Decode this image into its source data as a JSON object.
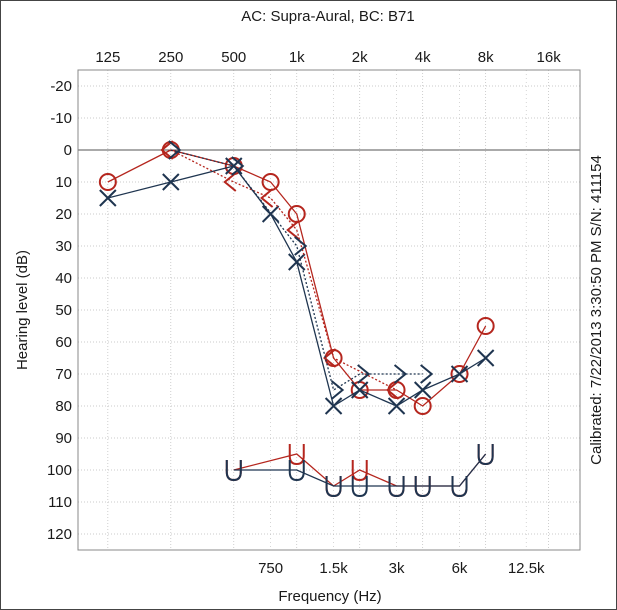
{
  "chart_data": {
    "type": "line",
    "title": "AC: Supra-Aural, BC: B71",
    "xlabel": "Frequency (Hz)",
    "ylabel": "Hearing level (dB)",
    "side_text": "Calibrated: 7/22/2013 3:30:50 PM S/N: 411154",
    "x_scale": "log",
    "xlim": [
      90,
      22600
    ],
    "ylim": [
      -25,
      125
    ],
    "y_inverted": true,
    "grid": true,
    "top_ticks": [
      {
        "hz": 125,
        "label": "125"
      },
      {
        "hz": 250,
        "label": "250"
      },
      {
        "hz": 500,
        "label": "500"
      },
      {
        "hz": 1000,
        "label": "1k"
      },
      {
        "hz": 2000,
        "label": "2k"
      },
      {
        "hz": 4000,
        "label": "4k"
      },
      {
        "hz": 8000,
        "label": "8k"
      },
      {
        "hz": 16000,
        "label": "16k"
      }
    ],
    "bottom_ticks": [
      {
        "hz": 750,
        "label": "750"
      },
      {
        "hz": 1500,
        "label": "1.5k"
      },
      {
        "hz": 3000,
        "label": "3k"
      },
      {
        "hz": 6000,
        "label": "6k"
      },
      {
        "hz": 12500,
        "label": "12.5k"
      }
    ],
    "y_ticks": [
      -20,
      -10,
      0,
      10,
      20,
      30,
      40,
      50,
      60,
      70,
      80,
      90,
      100,
      110,
      120
    ],
    "colors": {
      "right": "#b5261e",
      "left": "#1f3550",
      "grid": "#bbbbbb",
      "zero": "#555555",
      "frame": "#888888"
    },
    "series": [
      {
        "key": "right_ac",
        "marker": "circle",
        "color": "right",
        "linestyle": "solid",
        "x": [
          125,
          250,
          500,
          750,
          1000,
          1500,
          2000,
          3000,
          4000,
          6000,
          8000
        ],
        "y": [
          10,
          0,
          5,
          10,
          20,
          65,
          75,
          75,
          80,
          70,
          55
        ]
      },
      {
        "key": "left_ac",
        "marker": "x",
        "color": "left",
        "linestyle": "solid",
        "x": [
          125,
          250,
          500,
          750,
          1000,
          1500,
          2000,
          3000,
          4000,
          6000,
          8000
        ],
        "y": [
          15,
          10,
          5,
          20,
          35,
          80,
          75,
          80,
          75,
          70,
          65
        ]
      },
      {
        "key": "right_bc",
        "marker": "lt",
        "color": "right",
        "linestyle": "dotted",
        "x": [
          250,
          500,
          750,
          1000,
          1500,
          3000
        ],
        "y": [
          0,
          10,
          15,
          25,
          65,
          75
        ]
      },
      {
        "key": "left_bc",
        "marker": "gt",
        "color": "left",
        "linestyle": "dotted",
        "x": [
          250,
          500,
          1000,
          1500,
          2000,
          3000,
          4000
        ],
        "y": [
          0,
          5,
          30,
          75,
          70,
          70,
          70
        ]
      },
      {
        "key": "right_nr",
        "marker": "u",
        "color": "right",
        "linestyle": "solid",
        "x": [
          500,
          1000,
          1500,
          2000,
          3000,
          4000,
          6000,
          8000
        ],
        "y": [
          100,
          95,
          105,
          100,
          105,
          105,
          105,
          95
        ]
      },
      {
        "key": "left_nr",
        "marker": "u",
        "color": "left",
        "linestyle": "solid",
        "x": [
          500,
          1000,
          1500,
          2000,
          3000,
          4000,
          6000,
          8000
        ],
        "y": [
          100,
          100,
          105,
          105,
          105,
          105,
          105,
          95
        ]
      }
    ]
  }
}
